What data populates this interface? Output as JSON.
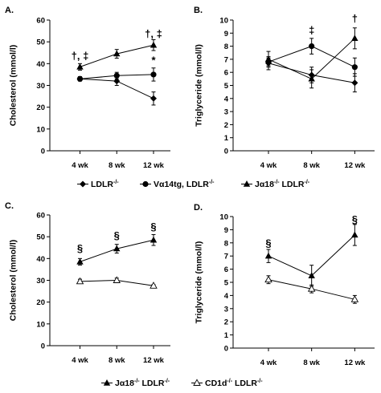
{
  "chart_data": [
    {
      "panel": "A.",
      "type": "line",
      "ylabel": "Cholesterol (mmol/l)",
      "ylim": [
        0,
        60
      ],
      "yticks": [
        0,
        10,
        20,
        30,
        40,
        50,
        60
      ],
      "categories": [
        "4 wk",
        "8 wk",
        "12 wk"
      ],
      "series": [
        {
          "name": "LDLR-/-",
          "marker": "diamond",
          "values": [
            33,
            32,
            24
          ],
          "errors": [
            1,
            2,
            3
          ]
        },
        {
          "name": "Vα14tg, LDLR-/-",
          "marker": "circle",
          "values": [
            33,
            34.5,
            35
          ],
          "errors": [
            1,
            1.5,
            3
          ]
        },
        {
          "name": "Jα18-/- LDLR-/-",
          "marker": "triangle",
          "values": [
            38.5,
            44.5,
            48.5
          ],
          "errors": [
            1.5,
            2,
            2.5
          ]
        }
      ],
      "annotations": [
        {
          "text": "†, ‡",
          "x": "4 wk",
          "y": 42
        },
        {
          "text": "†, ‡",
          "x": "12 wk",
          "y": 52
        },
        {
          "text": "*",
          "x": "12 wk",
          "y": 40
        }
      ]
    },
    {
      "panel": "B.",
      "type": "line",
      "ylabel": "Triglyceride (mmol/l)",
      "ylim": [
        0,
        10
      ],
      "yticks": [
        0,
        1,
        2,
        3,
        4,
        5,
        6,
        7,
        8,
        9,
        10
      ],
      "categories": [
        "4 wk",
        "8 wk",
        "12 wk"
      ],
      "series": [
        {
          "name": "LDLR-/-",
          "marker": "diamond",
          "values": [
            6.7,
            5.8,
            5.2
          ],
          "errors": [
            0.5,
            0.6,
            0.7
          ]
        },
        {
          "name": "Vα14tg, LDLR-/-",
          "marker": "circle",
          "values": [
            6.8,
            8.0,
            6.4
          ],
          "errors": [
            0.3,
            0.6,
            0.7
          ]
        },
        {
          "name": "Jα18-/- LDLR-/-",
          "marker": "triangle",
          "values": [
            7.0,
            5.5,
            8.6
          ],
          "errors": [
            0.6,
            0.7,
            0.8
          ]
        }
      ],
      "annotations": [
        {
          "text": "‡",
          "x": "8 wk",
          "y": 8.95
        },
        {
          "text": "†",
          "x": "12 wk",
          "y": 9.85
        }
      ]
    },
    {
      "panel": "C.",
      "type": "line",
      "ylabel": "Cholesterol (mmol/l)",
      "ylim": [
        0,
        60
      ],
      "yticks": [
        0,
        10,
        20,
        30,
        40,
        50,
        60
      ],
      "categories": [
        "4 wk",
        "8 wk",
        "12 wk"
      ],
      "series": [
        {
          "name": "Jα18-/- LDLR-/-",
          "marker": "triangle",
          "values": [
            38.5,
            44.5,
            48.5
          ],
          "errors": [
            1.5,
            2,
            2.5
          ]
        },
        {
          "name": "CD1d-/- LDLR-/-",
          "marker": "triangle-open",
          "values": [
            29.5,
            30,
            27.5
          ],
          "errors": [
            1,
            1,
            0.5
          ]
        }
      ],
      "annotations": [
        {
          "text": "§",
          "x": "4 wk",
          "y": 43
        },
        {
          "text": "§",
          "x": "8 wk",
          "y": 49
        },
        {
          "text": "§",
          "x": "12 wk",
          "y": 53
        }
      ]
    },
    {
      "panel": "D.",
      "type": "line",
      "ylabel": "Triglyceride (mmol/l)",
      "ylim": [
        0,
        10
      ],
      "yticks": [
        0,
        1,
        2,
        3,
        4,
        5,
        6,
        7,
        8,
        9,
        10
      ],
      "categories": [
        "4 wk",
        "8 wk",
        "12 wk"
      ],
      "series": [
        {
          "name": "Jα18-/- LDLR-/-",
          "marker": "triangle",
          "values": [
            7.0,
            5.5,
            8.6
          ],
          "errors": [
            0.5,
            0.8,
            0.8
          ]
        },
        {
          "name": "CD1d-/- LDLR-/-",
          "marker": "triangle-open",
          "values": [
            5.2,
            4.5,
            3.7
          ],
          "errors": [
            0.3,
            0.3,
            0.3
          ]
        }
      ],
      "annotations": [
        {
          "text": "§",
          "x": "4 wk",
          "y": 7.7
        },
        {
          "text": "§",
          "x": "12 wk",
          "y": 9.5
        }
      ]
    }
  ],
  "legends": [
    {
      "items": [
        {
          "marker": "diamond",
          "label": "LDLR",
          "sup": "-/-"
        },
        {
          "marker": "circle",
          "label": "Vα14tg, LDLR",
          "sup": "-/-"
        },
        {
          "marker": "triangle",
          "label": "Jα18",
          "sup": "-/-",
          "label2": " LDLR",
          "sup2": "-/-"
        }
      ]
    },
    {
      "items": [
        {
          "marker": "triangle",
          "label": "Jα18",
          "sup": "-/-",
          "label2": " LDLR",
          "sup2": "-/-"
        },
        {
          "marker": "triangle-open",
          "label": "CD1d",
          "sup": "-/-",
          "label2": " LDLR",
          "sup2": "-/-"
        }
      ]
    }
  ]
}
